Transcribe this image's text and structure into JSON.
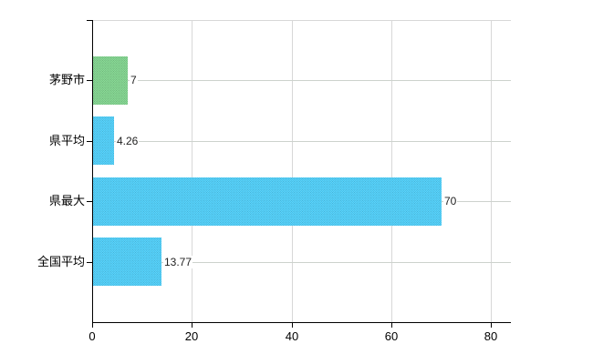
{
  "chart_data": {
    "type": "bar",
    "orientation": "horizontal",
    "title": "",
    "xlabel": "",
    "ylabel": "",
    "categories": [
      "茅野市",
      "県平均",
      "県最大",
      "全国平均"
    ],
    "values": [
      7,
      4.26,
      70,
      13.77
    ],
    "value_labels": [
      "7",
      "4.26",
      "70",
      "13.77"
    ],
    "bar_colors": [
      "#73c981",
      "#40c4f0",
      "#40c4f0",
      "#40c4f0"
    ],
    "x_tick_labels": [
      "0",
      "20",
      "40",
      "60",
      "80"
    ],
    "x_tick_values": [
      0,
      20,
      40,
      60,
      80
    ],
    "xlim": [
      0,
      84
    ],
    "grid": true,
    "legend_position": "none"
  },
  "colors": {
    "background": "#ffffff",
    "axis": "#000000",
    "vertical_gridline": "#d8d8d8",
    "category_gridline": "#cdd2cd",
    "plot_top_border": "#d8d8d8",
    "label_text": "#000000",
    "value_text": "#222222"
  }
}
